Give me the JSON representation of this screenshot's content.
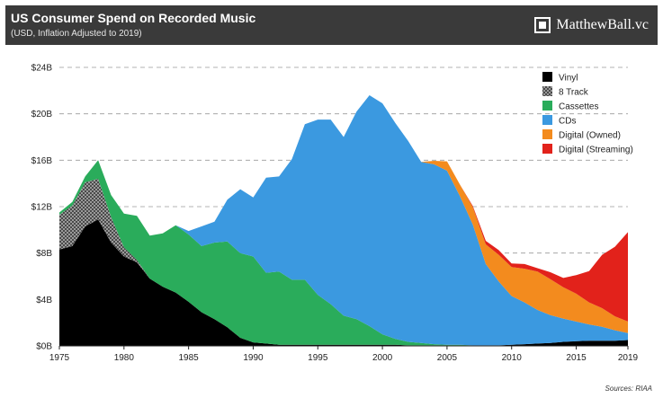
{
  "header": {
    "title": "US Consumer Spend on Recorded Music",
    "subtitle": "(USD, Inflation Adjusted to 2019)",
    "brand": "MatthewBall.vc"
  },
  "source": "Sources: RIAA",
  "chart_data": {
    "type": "area",
    "stacked": true,
    "title": "US Consumer Spend on Recorded Music",
    "subtitle": "(USD, Inflation Adjusted to 2019)",
    "xlabel": "",
    "ylabel": "",
    "x_range": [
      1975,
      2019
    ],
    "ylim": [
      0,
      24
    ],
    "yticks": [
      0,
      4,
      8,
      12,
      16,
      20,
      24
    ],
    "ytick_labels": [
      "$0B",
      "$4B",
      "$8B",
      "$12B",
      "$16B",
      "$20B",
      "$24B"
    ],
    "xticks": [
      1975,
      1980,
      1985,
      1990,
      1995,
      2000,
      2005,
      2010,
      2015,
      2019
    ],
    "grid": true,
    "legend_position": "top-right",
    "years": [
      1975,
      1976,
      1977,
      1978,
      1979,
      1980,
      1981,
      1982,
      1983,
      1984,
      1985,
      1986,
      1987,
      1988,
      1989,
      1990,
      1991,
      1992,
      1993,
      1994,
      1995,
      1996,
      1997,
      1998,
      1999,
      2000,
      2001,
      2002,
      2003,
      2004,
      2005,
      2006,
      2007,
      2008,
      2009,
      2010,
      2011,
      2012,
      2013,
      2014,
      2015,
      2016,
      2017,
      2018,
      2019
    ],
    "series": [
      {
        "name": "Vinyl",
        "color": "#000000",
        "values": [
          8.3,
          8.6,
          10.3,
          10.9,
          8.9,
          7.7,
          7.2,
          5.8,
          5.1,
          4.6,
          3.8,
          2.9,
          2.3,
          1.6,
          0.7,
          0.3,
          0.2,
          0.1,
          0.1,
          0.1,
          0.1,
          0.1,
          0.1,
          0.1,
          0.1,
          0.1,
          0.1,
          0.05,
          0.05,
          0.05,
          0.05,
          0.05,
          0.05,
          0.05,
          0.05,
          0.1,
          0.15,
          0.2,
          0.25,
          0.35,
          0.4,
          0.45,
          0.45,
          0.45,
          0.5
        ]
      },
      {
        "name": "8 Track",
        "color": "#8c8c8c",
        "values": [
          3.0,
          3.5,
          3.8,
          3.5,
          2.2,
          0.8,
          0.2,
          0,
          0,
          0,
          0,
          0,
          0,
          0,
          0,
          0,
          0,
          0,
          0,
          0,
          0,
          0,
          0,
          0,
          0,
          0,
          0,
          0,
          0,
          0,
          0,
          0,
          0,
          0,
          0,
          0,
          0,
          0,
          0,
          0,
          0,
          0,
          0,
          0,
          0
        ]
      },
      {
        "name": "Cassettes",
        "color": "#2aac5b",
        "values": [
          0.2,
          0.3,
          0.5,
          1.6,
          1.9,
          2.9,
          3.8,
          3.7,
          4.6,
          5.8,
          5.8,
          5.7,
          6.6,
          7.4,
          7.3,
          7.4,
          6.1,
          6.3,
          5.6,
          5.6,
          4.3,
          3.5,
          2.5,
          2.2,
          1.6,
          0.9,
          0.5,
          0.3,
          0.2,
          0.1,
          0.05,
          0.05,
          0,
          0,
          0,
          0,
          0,
          0,
          0,
          0,
          0,
          0,
          0,
          0,
          0
        ]
      },
      {
        "name": "CDs",
        "color": "#3b99e0",
        "values": [
          0,
          0,
          0,
          0,
          0,
          0,
          0,
          0,
          0,
          0,
          0.3,
          1.7,
          1.8,
          3.6,
          5.5,
          5.1,
          8.2,
          8.2,
          10.4,
          13.4,
          15.1,
          15.9,
          15.4,
          17.9,
          19.9,
          19.9,
          18.6,
          17.3,
          15.6,
          15.5,
          15.0,
          12.8,
          10.4,
          7.0,
          5.5,
          4.2,
          3.6,
          2.9,
          2.4,
          2.0,
          1.7,
          1.4,
          1.2,
          0.9,
          0.6
        ]
      },
      {
        "name": "Digital (Owned)",
        "color": "#f38b1e",
        "values": [
          0,
          0,
          0,
          0,
          0,
          0,
          0,
          0,
          0,
          0,
          0,
          0,
          0,
          0,
          0,
          0,
          0,
          0,
          0,
          0,
          0,
          0,
          0,
          0,
          0,
          0,
          0,
          0,
          0,
          0.3,
          0.8,
          1.0,
          1.5,
          1.7,
          2.3,
          2.5,
          2.9,
          3.3,
          3.1,
          2.7,
          2.4,
          1.9,
          1.6,
          1.2,
          1.0
        ]
      },
      {
        "name": "Digital (Streaming)",
        "color": "#e2221b",
        "values": [
          0,
          0,
          0,
          0,
          0,
          0,
          0,
          0,
          0,
          0,
          0,
          0,
          0,
          0,
          0,
          0,
          0,
          0,
          0,
          0,
          0,
          0,
          0,
          0,
          0,
          0,
          0,
          0,
          0,
          0,
          0,
          0,
          0.1,
          0.3,
          0.4,
          0.3,
          0.4,
          0.3,
          0.6,
          0.8,
          1.6,
          2.7,
          4.6,
          6.0,
          7.7
        ]
      }
    ]
  }
}
